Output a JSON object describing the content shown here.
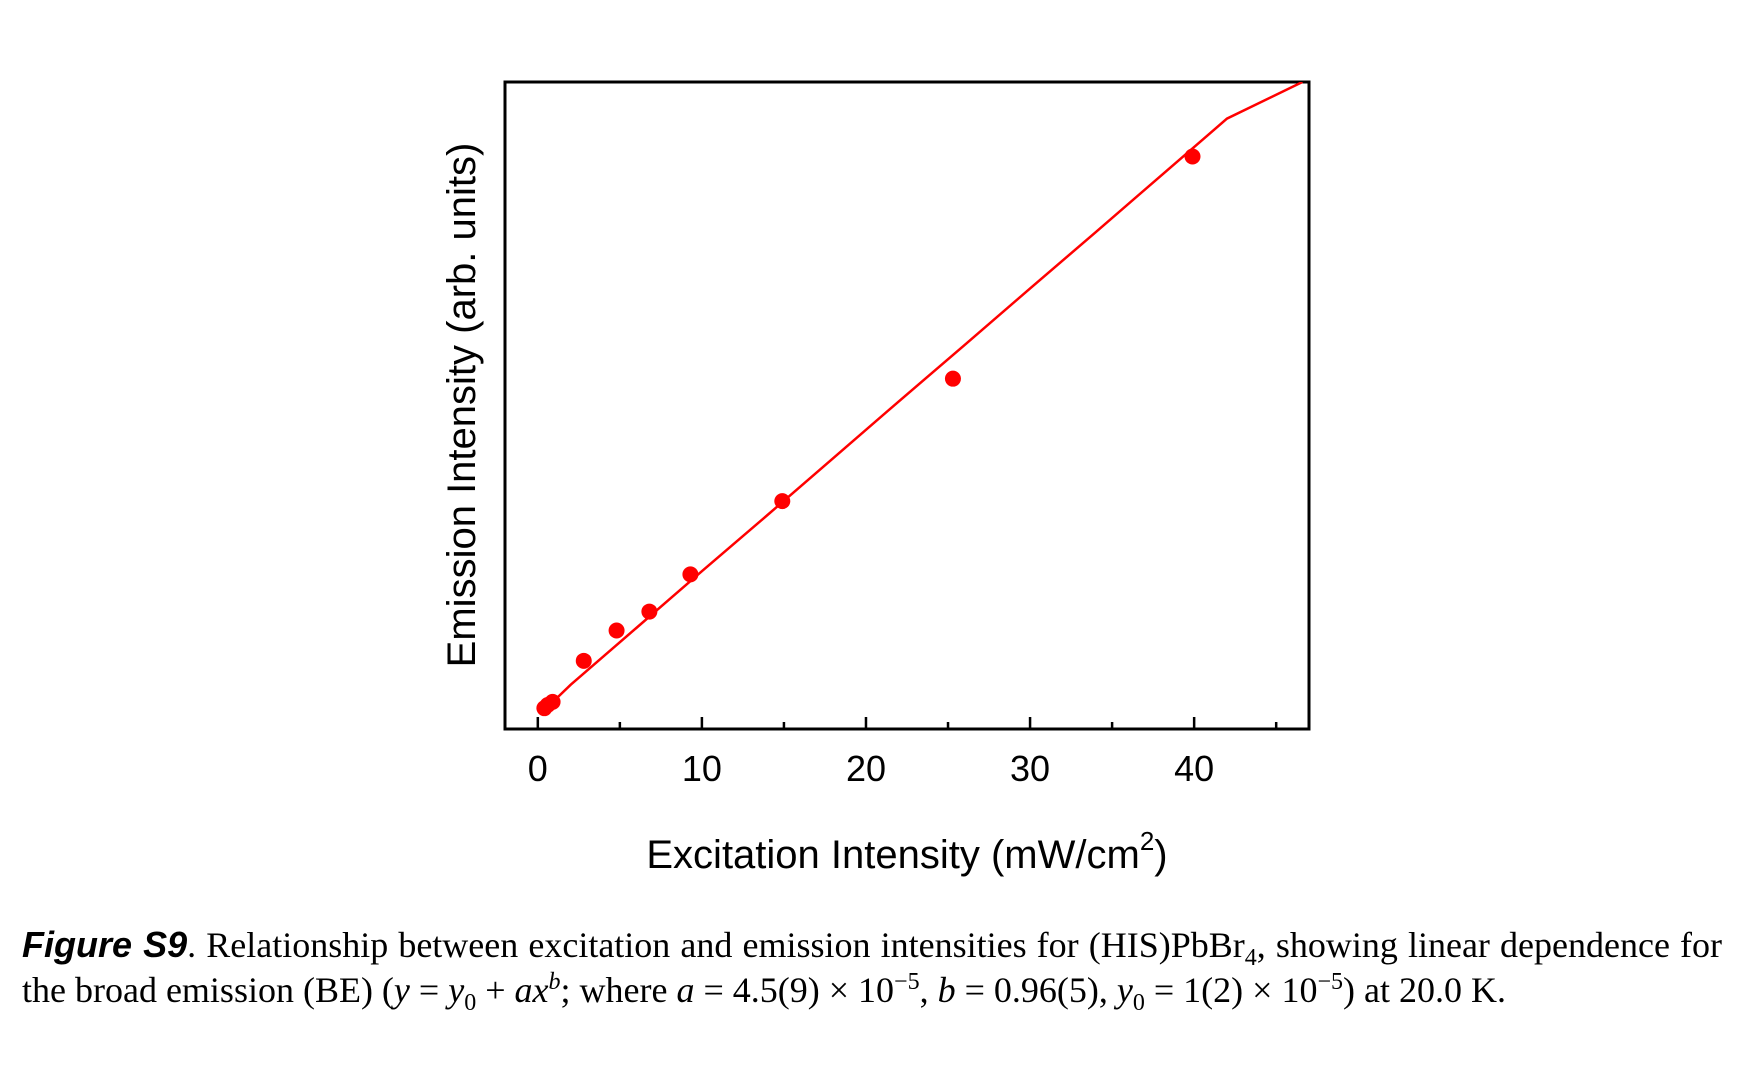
{
  "chart_data": {
    "type": "scatter",
    "xlabel_main": "Excitation Intensity (mW/cm",
    "xlabel_sup": "2",
    "xlabel_end": ")",
    "ylabel": "Emission Intensity (arb. units)",
    "xlim": [
      -2,
      47
    ],
    "ylim": [
      -0.025,
      1.0
    ],
    "x_ticks": [
      0,
      10,
      20,
      30,
      40
    ],
    "y_ticks_labeled": false,
    "grid": false,
    "legend": "none",
    "series": [
      {
        "kind": "points",
        "color": "#ff0000",
        "points": [
          {
            "x": 0.4,
            "y": 0.008
          },
          {
            "x": 0.6,
            "y": 0.013
          },
          {
            "x": 0.9,
            "y": 0.018
          },
          {
            "x": 2.8,
            "y": 0.083
          },
          {
            "x": 4.8,
            "y": 0.131
          },
          {
            "x": 6.8,
            "y": 0.161
          },
          {
            "x": 9.3,
            "y": 0.22
          },
          {
            "x": 14.9,
            "y": 0.336
          },
          {
            "x": 25.3,
            "y": 0.53
          },
          {
            "x": 39.9,
            "y": 0.882
          }
        ]
      },
      {
        "kind": "fit-line",
        "color": "#ff0000",
        "x": [
          0.2,
          1,
          2,
          4,
          6,
          8,
          10,
          14,
          18,
          22,
          26,
          30,
          34,
          38,
          42,
          46.6
        ],
        "y": [
          0.0,
          0.02,
          0.045,
          0.09,
          0.135,
          0.18,
          0.225,
          0.314,
          0.404,
          0.494,
          0.583,
          0.673,
          0.762,
          0.852,
          0.942,
          1.0
        ]
      }
    ]
  },
  "caption": {
    "label": "Figure S9",
    "text_1": ". Relationship between excitation and emission intensities for (HIS)PbBr",
    "sub_4": "4",
    "text_2": ", showing linear dependence for the broad emission (BE) (",
    "var_y": "y",
    "eq_1": " = ",
    "var_y0": "y",
    "sub_0": "0",
    "eq_2": " + ",
    "var_ax": "ax",
    "sup_b": "b",
    "text_3": "; where ",
    "var_a": "a",
    "text_4": " = 4.5(9) × 10",
    "sup_m5a": "−5",
    "text_5": ", ",
    "var_b": "b",
    "text_6": " = 0.96(5), ",
    "var_y0b": "y",
    "sub_0b": "0",
    "text_7": " = 1(2) × 10",
    "sup_m5b": "−5",
    "text_8": ") at 20.0 K."
  }
}
